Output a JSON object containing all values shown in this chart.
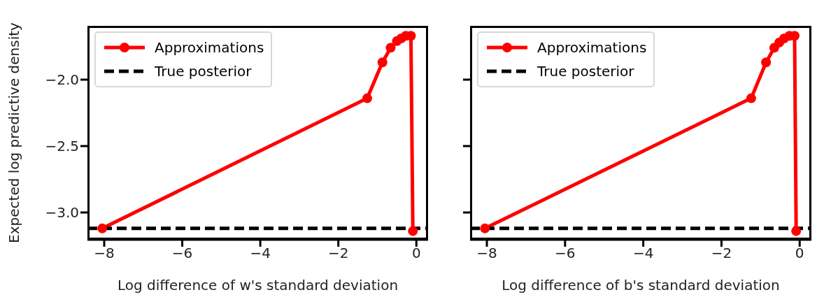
{
  "chart_data": [
    {
      "type": "line",
      "xlabel": "Log difference of w's standard deviation",
      "ylabel": "Expected log predictive density",
      "xlim": [
        -8.43,
        0.3
      ],
      "ylim": [
        -3.205,
        -1.595
      ],
      "xticks": [
        {
          "value": -8,
          "label": "−8"
        },
        {
          "value": -6,
          "label": "−6"
        },
        {
          "value": -4,
          "label": "−4"
        },
        {
          "value": -2,
          "label": "−2"
        },
        {
          "value": 0,
          "label": "0"
        }
      ],
      "yticks": [
        {
          "value": -3,
          "label": "−3.0"
        },
        {
          "value": -2.5,
          "label": "−2.5"
        },
        {
          "value": -2,
          "label": "−2.0"
        }
      ],
      "grid": false,
      "legend": "top left",
      "series": [
        {
          "name": "Approximations",
          "color": "#ff0000",
          "marker": "circle",
          "line_style": "solid",
          "x": [
            -8.05,
            -1.26,
            -0.87,
            -0.66,
            -0.5,
            -0.39,
            -0.27,
            -0.14,
            -0.09
          ],
          "values": [
            -3.12,
            -2.14,
            -1.87,
            -1.76,
            -1.71,
            -1.69,
            -1.67,
            -1.67,
            -3.14
          ]
        },
        {
          "name": "True posterior",
          "color": "#000000",
          "marker": "none",
          "line_style": "dashed",
          "x": [
            -8.43,
            0.3
          ],
          "values": [
            -3.12,
            -3.12
          ]
        }
      ]
    },
    {
      "type": "line",
      "xlabel": "Log difference of b's standard deviation",
      "xlim": [
        -8.43,
        0.3
      ],
      "ylim": [
        -3.205,
        -1.595
      ],
      "xticks": [
        {
          "value": -8,
          "label": "−8"
        },
        {
          "value": -6,
          "label": "−6"
        },
        {
          "value": -4,
          "label": "−4"
        },
        {
          "value": -2,
          "label": "−2"
        },
        {
          "value": 0,
          "label": "0"
        }
      ],
      "yticks": [
        {
          "value": -3,
          "label": null
        },
        {
          "value": -2.5,
          "label": null
        },
        {
          "value": -2,
          "label": null
        }
      ],
      "grid": false,
      "legend": "top left",
      "tick_labels": "x",
      "series": [
        {
          "name": "Approximations",
          "color": "#ff0000",
          "marker": "circle",
          "line_style": "solid",
          "x": [
            -8.05,
            -1.24,
            -0.86,
            -0.65,
            -0.52,
            -0.4,
            -0.26,
            -0.13,
            -0.09
          ],
          "values": [
            -3.12,
            -2.14,
            -1.87,
            -1.76,
            -1.72,
            -1.69,
            -1.67,
            -1.67,
            -3.14
          ]
        },
        {
          "name": "True posterior",
          "color": "#000000",
          "marker": "none",
          "line_style": "dashed",
          "x": [
            -8.43,
            0.3
          ],
          "values": [
            -3.12,
            -3.12
          ]
        }
      ]
    }
  ]
}
